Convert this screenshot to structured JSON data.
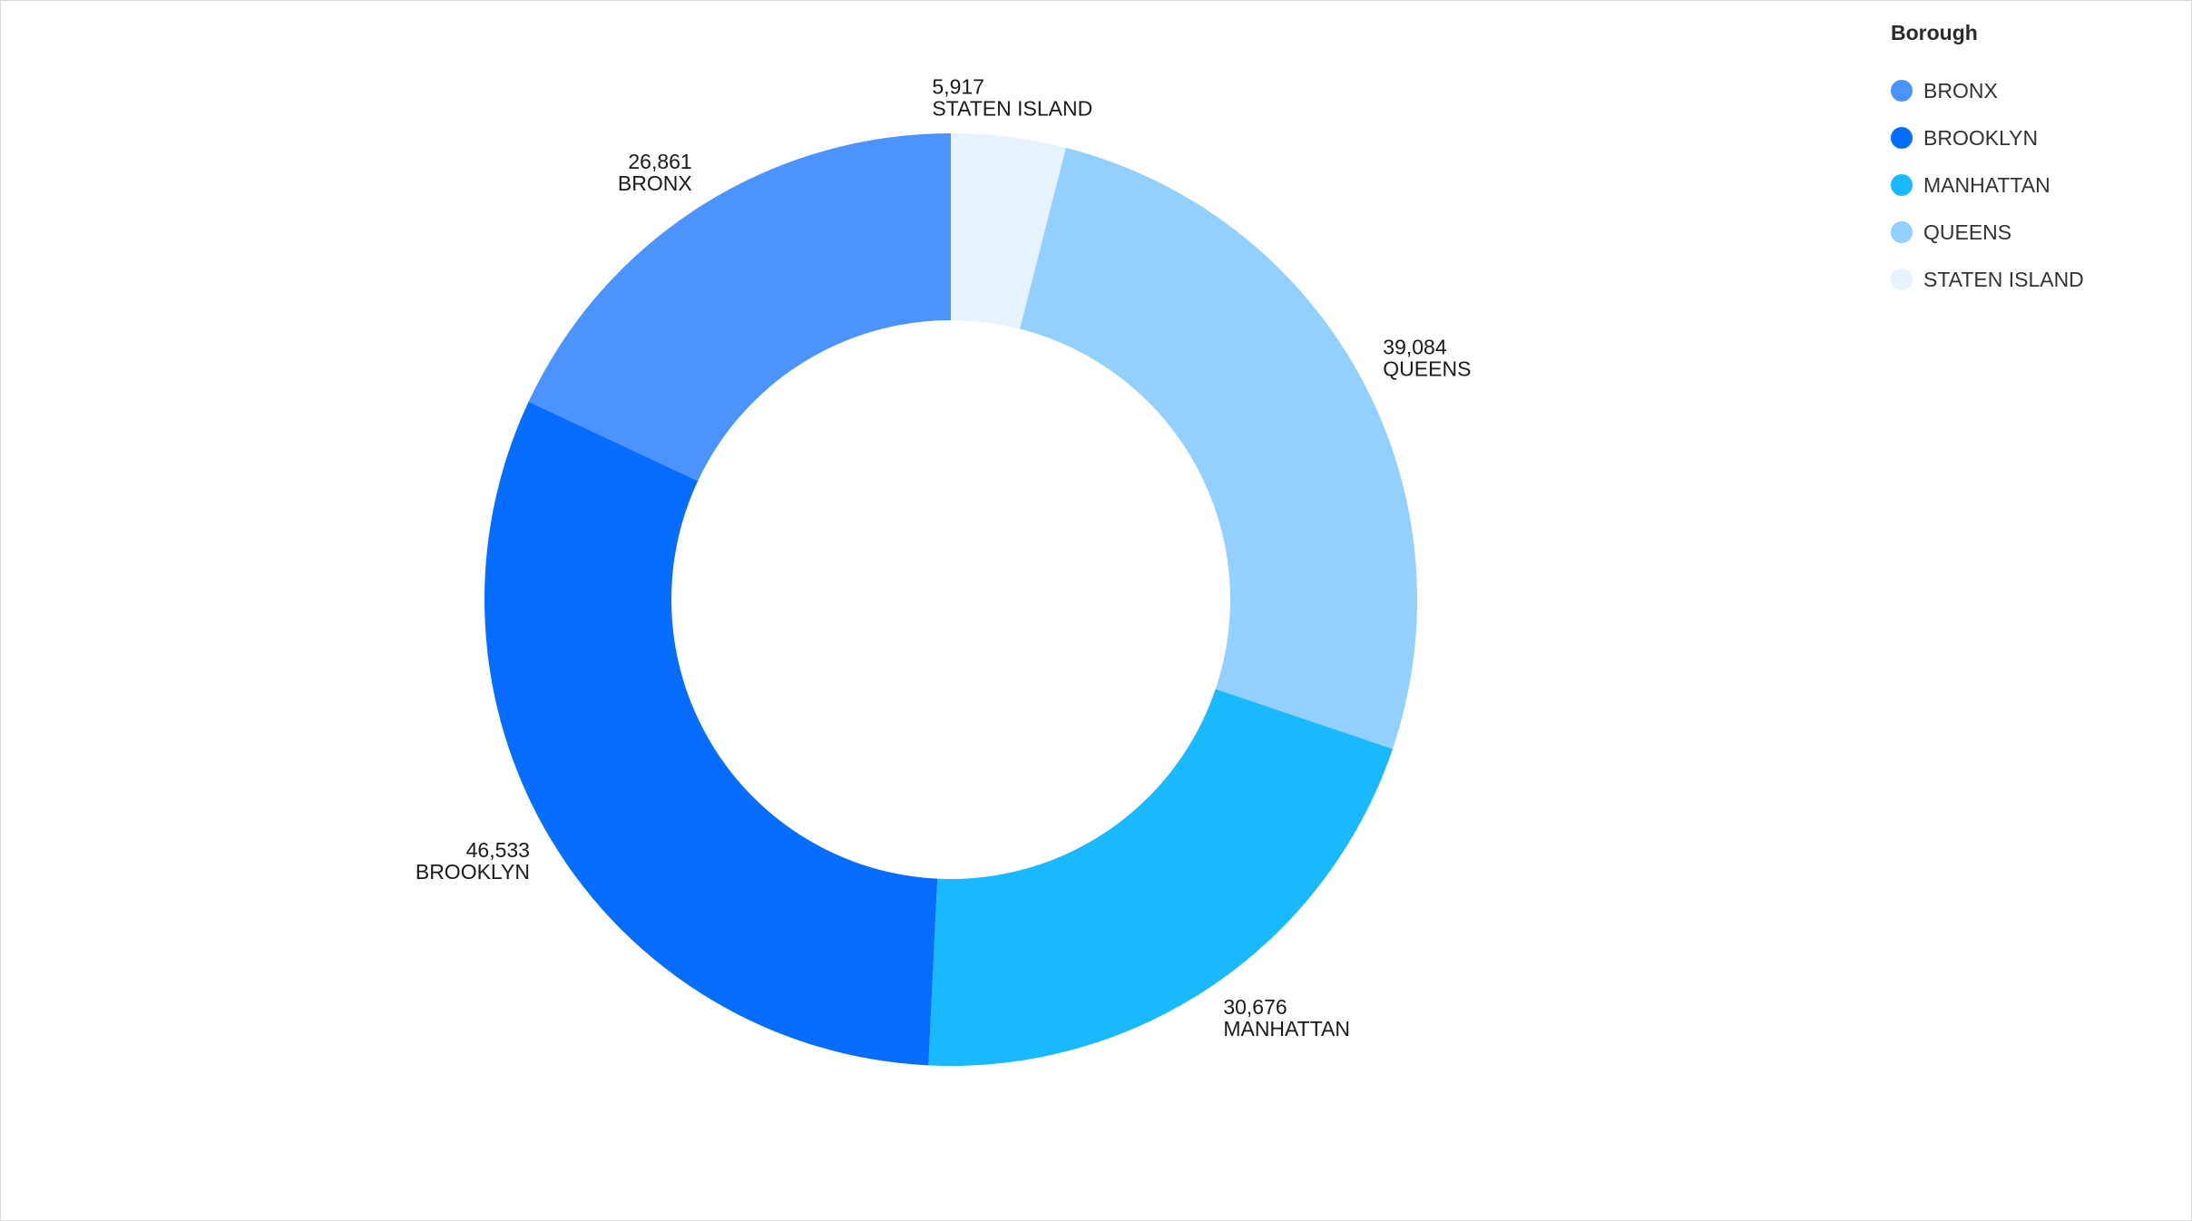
{
  "chart_data": {
    "type": "pie",
    "donut": true,
    "legend": {
      "title": "Borough",
      "placement": "top-right"
    },
    "slices": [
      {
        "label": "STATEN ISLAND",
        "value": 5917,
        "display": "5,917",
        "color": "#E6F3FF"
      },
      {
        "label": "QUEENS",
        "value": 39084,
        "display": "39,084",
        "color": "#93D0FF"
      },
      {
        "label": "MANHATTAN",
        "value": 30676,
        "display": "30,676",
        "color": "#1AB8FF"
      },
      {
        "label": "BROOKLYN",
        "value": 46533,
        "display": "46,533",
        "color": "#086CFF"
      },
      {
        "label": "BRONX",
        "value": 26861,
        "display": "26,861",
        "color": "#4C93FF"
      }
    ],
    "legend_order": [
      "BRONX",
      "BROOKLYN",
      "MANHATTAN",
      "QUEENS",
      "STATEN ISLAND"
    ]
  }
}
